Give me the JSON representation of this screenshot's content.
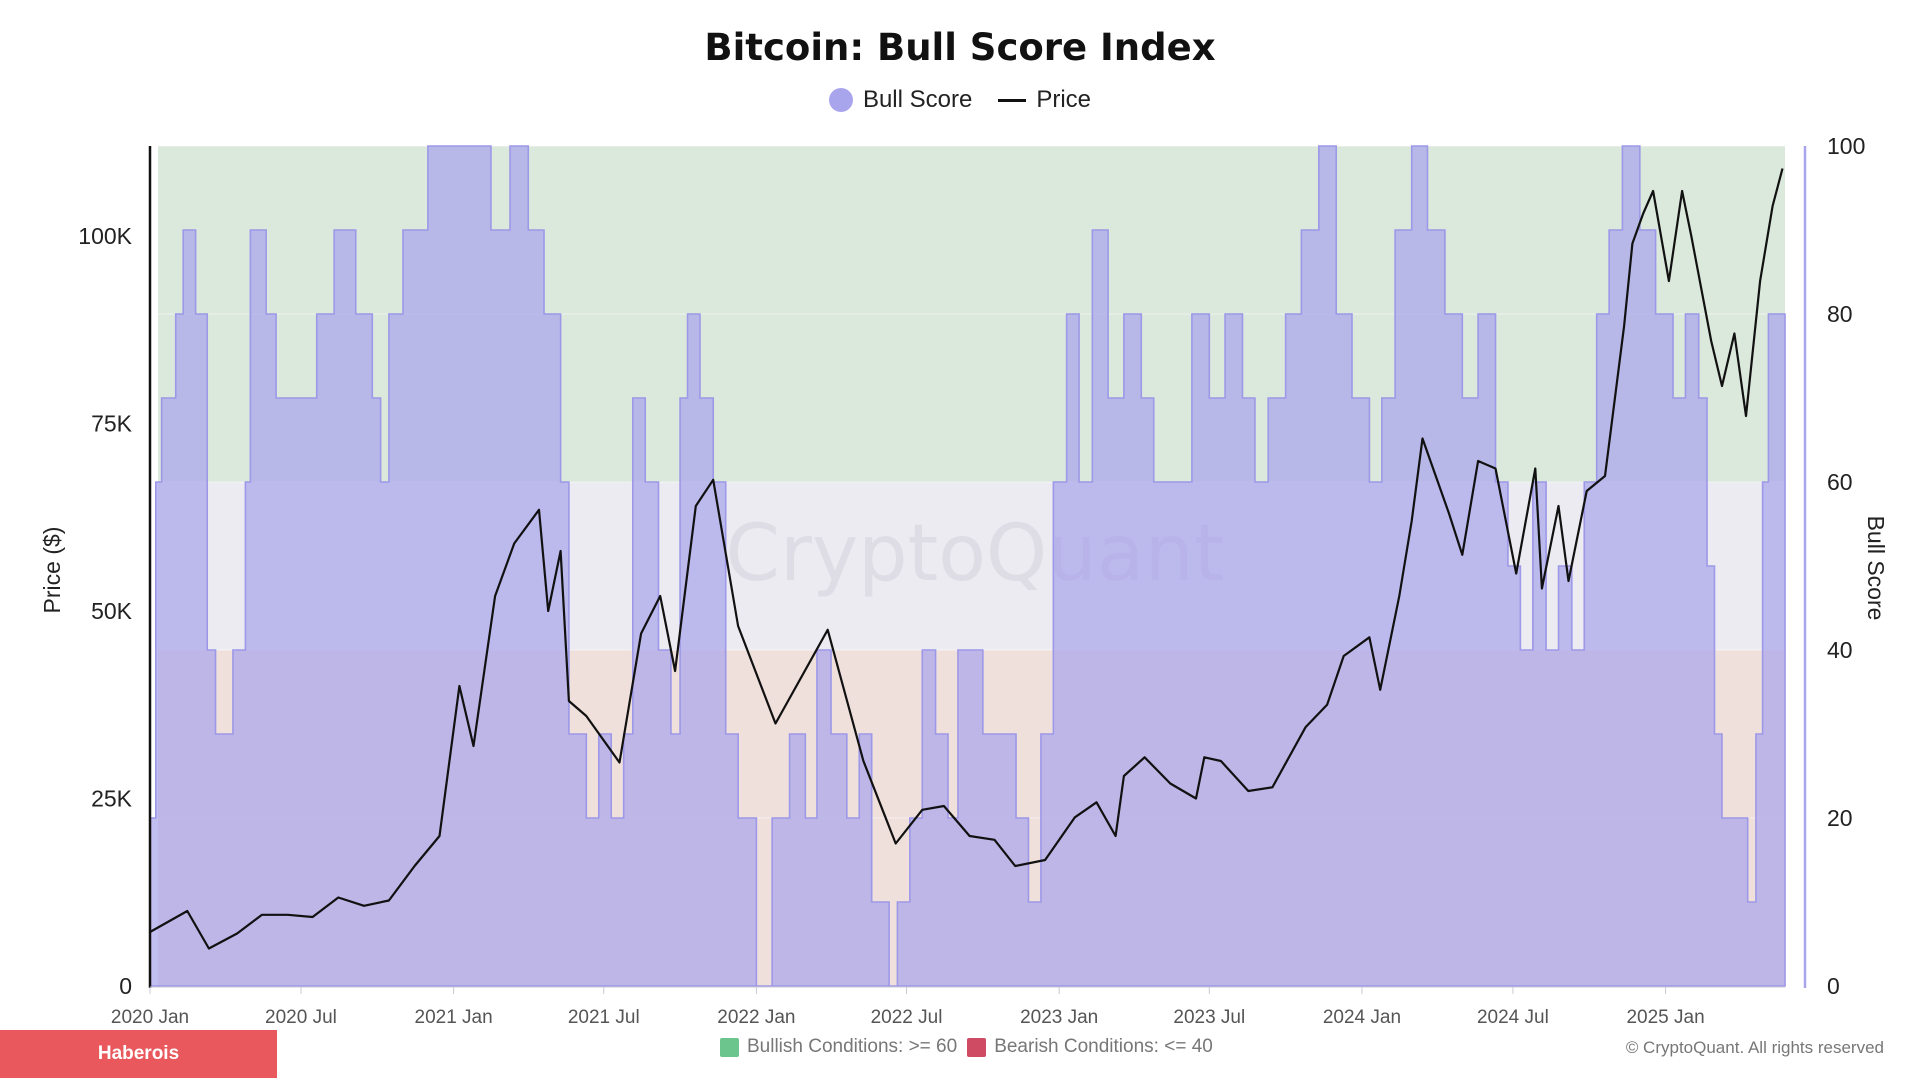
{
  "title": "Bitcoin: Bull Score Index",
  "legend": {
    "bull_score_label": "Bull Score",
    "price_label": "Price",
    "bull_score_color": "#a9a5ec",
    "price_color": "#111111"
  },
  "conditions": {
    "bullish_label": "Bullish Conditions: >= 60",
    "bearish_label": "Bearish Conditions: <= 40",
    "bullish_color": "#6cc58d",
    "bearish_color": "#cf4b63"
  },
  "copyright": "© CryptoQuant. All rights reserved",
  "watermark": "CryptoQuant",
  "badge": "Haberois",
  "chart_data": {
    "type": "area+line",
    "xlabel": "",
    "x_ticks": [
      "2020 Jan",
      "2020 Jul",
      "2021 Jan",
      "2021 Jul",
      "2022 Jan",
      "2022 Jul",
      "2023 Jan",
      "2023 Jul",
      "2024 Jan",
      "2024 Jul",
      "2025 Jan"
    ],
    "x_range": [
      "2020-01-01",
      "2025-05-25"
    ],
    "y_left": {
      "label": "Price ($)",
      "ticks": [
        "0",
        "25K",
        "50K",
        "75K",
        "100K"
      ],
      "range": [
        0,
        112000
      ]
    },
    "y_right": {
      "label": "Bull Score",
      "ticks": [
        "0",
        "20",
        "40",
        "60",
        "80",
        "100"
      ],
      "range": [
        0,
        100
      ]
    },
    "zones": [
      {
        "name": "Bullish Conditions",
        "from": 60,
        "to": 100,
        "color": "#dbe8dc"
      },
      {
        "name": "Neutral",
        "from": 40,
        "to": 60,
        "color": "#ecebf1"
      },
      {
        "name": "Bearish Conditions",
        "from": 0,
        "to": 40,
        "color": "#efe0dc"
      }
    ],
    "series": [
      {
        "name": "Bull Score",
        "axis": "right",
        "kind": "area",
        "points": [
          [
            "2020-01-01",
            20
          ],
          [
            "2020-01-08",
            60
          ],
          [
            "2020-01-15",
            70
          ],
          [
            "2020-02-01",
            80
          ],
          [
            "2020-02-10",
            90
          ],
          [
            "2020-02-25",
            80
          ],
          [
            "2020-03-10",
            40
          ],
          [
            "2020-03-20",
            30
          ],
          [
            "2020-04-10",
            40
          ],
          [
            "2020-04-25",
            60
          ],
          [
            "2020-05-01",
            90
          ],
          [
            "2020-05-20",
            80
          ],
          [
            "2020-06-01",
            70
          ],
          [
            "2020-07-01",
            70
          ],
          [
            "2020-07-20",
            80
          ],
          [
            "2020-08-10",
            90
          ],
          [
            "2020-09-05",
            80
          ],
          [
            "2020-09-25",
            70
          ],
          [
            "2020-10-05",
            60
          ],
          [
            "2020-10-15",
            80
          ],
          [
            "2020-11-01",
            90
          ],
          [
            "2020-12-01",
            100
          ],
          [
            "2021-01-15",
            100
          ],
          [
            "2021-02-15",
            90
          ],
          [
            "2021-03-10",
            100
          ],
          [
            "2021-04-01",
            90
          ],
          [
            "2021-04-20",
            80
          ],
          [
            "2021-05-10",
            60
          ],
          [
            "2021-05-20",
            30
          ],
          [
            "2021-06-10",
            20
          ],
          [
            "2021-06-25",
            30
          ],
          [
            "2021-07-10",
            20
          ],
          [
            "2021-07-25",
            30
          ],
          [
            "2021-08-05",
            70
          ],
          [
            "2021-08-20",
            60
          ],
          [
            "2021-09-05",
            40
          ],
          [
            "2021-09-20",
            30
          ],
          [
            "2021-10-01",
            70
          ],
          [
            "2021-10-10",
            80
          ],
          [
            "2021-10-25",
            70
          ],
          [
            "2021-11-10",
            60
          ],
          [
            "2021-11-25",
            30
          ],
          [
            "2021-12-10",
            20
          ],
          [
            "2022-01-01",
            0
          ],
          [
            "2022-01-20",
            20
          ],
          [
            "2022-02-10",
            30
          ],
          [
            "2022-03-01",
            20
          ],
          [
            "2022-03-15",
            40
          ],
          [
            "2022-04-01",
            30
          ],
          [
            "2022-04-20",
            20
          ],
          [
            "2022-05-05",
            30
          ],
          [
            "2022-05-20",
            10
          ],
          [
            "2022-06-10",
            0
          ],
          [
            "2022-06-20",
            10
          ],
          [
            "2022-07-05",
            20
          ],
          [
            "2022-07-20",
            40
          ],
          [
            "2022-08-05",
            30
          ],
          [
            "2022-08-20",
            20
          ],
          [
            "2022-09-01",
            40
          ],
          [
            "2022-10-01",
            30
          ],
          [
            "2022-11-10",
            20
          ],
          [
            "2022-11-25",
            10
          ],
          [
            "2022-12-10",
            30
          ],
          [
            "2022-12-25",
            60
          ],
          [
            "2023-01-10",
            80
          ],
          [
            "2023-01-25",
            60
          ],
          [
            "2023-02-10",
            90
          ],
          [
            "2023-03-01",
            70
          ],
          [
            "2023-03-20",
            80
          ],
          [
            "2023-04-10",
            70
          ],
          [
            "2023-04-25",
            60
          ],
          [
            "2023-05-10",
            60
          ],
          [
            "2023-05-25",
            60
          ],
          [
            "2023-06-10",
            80
          ],
          [
            "2023-07-01",
            70
          ],
          [
            "2023-07-20",
            80
          ],
          [
            "2023-08-10",
            70
          ],
          [
            "2023-08-25",
            60
          ],
          [
            "2023-09-10",
            70
          ],
          [
            "2023-10-01",
            80
          ],
          [
            "2023-10-20",
            90
          ],
          [
            "2023-11-10",
            100
          ],
          [
            "2023-12-01",
            80
          ],
          [
            "2023-12-20",
            70
          ],
          [
            "2024-01-10",
            60
          ],
          [
            "2024-01-25",
            70
          ],
          [
            "2024-02-10",
            90
          ],
          [
            "2024-03-01",
            100
          ],
          [
            "2024-03-20",
            90
          ],
          [
            "2024-04-10",
            80
          ],
          [
            "2024-05-01",
            70
          ],
          [
            "2024-05-20",
            80
          ],
          [
            "2024-06-10",
            60
          ],
          [
            "2024-06-25",
            50
          ],
          [
            "2024-07-10",
            40
          ],
          [
            "2024-07-25",
            60
          ],
          [
            "2024-08-10",
            40
          ],
          [
            "2024-08-25",
            50
          ],
          [
            "2024-09-10",
            40
          ],
          [
            "2024-09-25",
            60
          ],
          [
            "2024-10-10",
            80
          ],
          [
            "2024-10-25",
            90
          ],
          [
            "2024-11-10",
            100
          ],
          [
            "2024-12-01",
            90
          ],
          [
            "2024-12-20",
            80
          ],
          [
            "2025-01-10",
            70
          ],
          [
            "2025-01-25",
            80
          ],
          [
            "2025-02-10",
            70
          ],
          [
            "2025-02-20",
            50
          ],
          [
            "2025-03-01",
            30
          ],
          [
            "2025-03-10",
            20
          ],
          [
            "2025-04-01",
            20
          ],
          [
            "2025-04-10",
            10
          ],
          [
            "2025-04-20",
            30
          ],
          [
            "2025-04-28",
            60
          ],
          [
            "2025-05-05",
            80
          ],
          [
            "2025-05-15",
            80
          ],
          [
            "2025-05-25",
            0
          ]
        ]
      },
      {
        "name": "Price",
        "axis": "left",
        "kind": "line",
        "points": [
          [
            "2020-01-01",
            7200
          ],
          [
            "2020-02-15",
            10000
          ],
          [
            "2020-03-12",
            5000
          ],
          [
            "2020-04-15",
            7000
          ],
          [
            "2020-05-15",
            9500
          ],
          [
            "2020-06-15",
            9500
          ],
          [
            "2020-07-15",
            9200
          ],
          [
            "2020-08-15",
            11800
          ],
          [
            "2020-09-15",
            10700
          ],
          [
            "2020-10-15",
            11400
          ],
          [
            "2020-11-15",
            16000
          ],
          [
            "2020-12-15",
            20000
          ],
          [
            "2021-01-08",
            40000
          ],
          [
            "2021-01-25",
            32000
          ],
          [
            "2021-02-20",
            52000
          ],
          [
            "2021-03-15",
            59000
          ],
          [
            "2021-04-14",
            63500
          ],
          [
            "2021-04-25",
            50000
          ],
          [
            "2021-05-10",
            58000
          ],
          [
            "2021-05-20",
            38000
          ],
          [
            "2021-06-10",
            36000
          ],
          [
            "2021-07-20",
            29800
          ],
          [
            "2021-08-15",
            47000
          ],
          [
            "2021-09-07",
            52000
          ],
          [
            "2021-09-25",
            42000
          ],
          [
            "2021-10-20",
            64000
          ],
          [
            "2021-11-10",
            67500
          ],
          [
            "2021-12-10",
            48000
          ],
          [
            "2022-01-24",
            35000
          ],
          [
            "2022-03-28",
            47500
          ],
          [
            "2022-05-10",
            30000
          ],
          [
            "2022-06-18",
            19000
          ],
          [
            "2022-07-20",
            23500
          ],
          [
            "2022-08-15",
            24000
          ],
          [
            "2022-09-15",
            20000
          ],
          [
            "2022-10-15",
            19500
          ],
          [
            "2022-11-09",
            16000
          ],
          [
            "2022-12-15",
            16800
          ],
          [
            "2023-01-20",
            22500
          ],
          [
            "2023-02-15",
            24500
          ],
          [
            "2023-03-10",
            20000
          ],
          [
            "2023-03-20",
            28000
          ],
          [
            "2023-04-14",
            30500
          ],
          [
            "2023-05-15",
            27000
          ],
          [
            "2023-06-15",
            25000
          ],
          [
            "2023-06-25",
            30500
          ],
          [
            "2023-07-15",
            30000
          ],
          [
            "2023-08-17",
            26000
          ],
          [
            "2023-09-15",
            26500
          ],
          [
            "2023-10-25",
            34500
          ],
          [
            "2023-11-20",
            37500
          ],
          [
            "2023-12-10",
            44000
          ],
          [
            "2024-01-10",
            46500
          ],
          [
            "2024-01-23",
            39500
          ],
          [
            "2024-02-15",
            52000
          ],
          [
            "2024-03-01",
            62000
          ],
          [
            "2024-03-14",
            73000
          ],
          [
            "2024-04-15",
            63000
          ],
          [
            "2024-05-01",
            57500
          ],
          [
            "2024-05-20",
            70000
          ],
          [
            "2024-06-10",
            69000
          ],
          [
            "2024-07-05",
            55000
          ],
          [
            "2024-07-28",
            69000
          ],
          [
            "2024-08-05",
            53000
          ],
          [
            "2024-08-25",
            64000
          ],
          [
            "2024-09-06",
            54000
          ],
          [
            "2024-09-28",
            66000
          ],
          [
            "2024-10-20",
            68000
          ],
          [
            "2024-11-12",
            88000
          ],
          [
            "2024-11-22",
            99000
          ],
          [
            "2024-12-05",
            103000
          ],
          [
            "2024-12-17",
            106000
          ],
          [
            "2025-01-05",
            94000
          ],
          [
            "2025-01-21",
            106000
          ],
          [
            "2025-02-01",
            100000
          ],
          [
            "2025-02-25",
            86000
          ],
          [
            "2025-03-10",
            80000
          ],
          [
            "2025-03-25",
            87000
          ],
          [
            "2025-04-08",
            76000
          ],
          [
            "2025-04-25",
            94000
          ],
          [
            "2025-05-10",
            104000
          ],
          [
            "2025-05-22",
            109000
          ]
        ]
      }
    ]
  }
}
